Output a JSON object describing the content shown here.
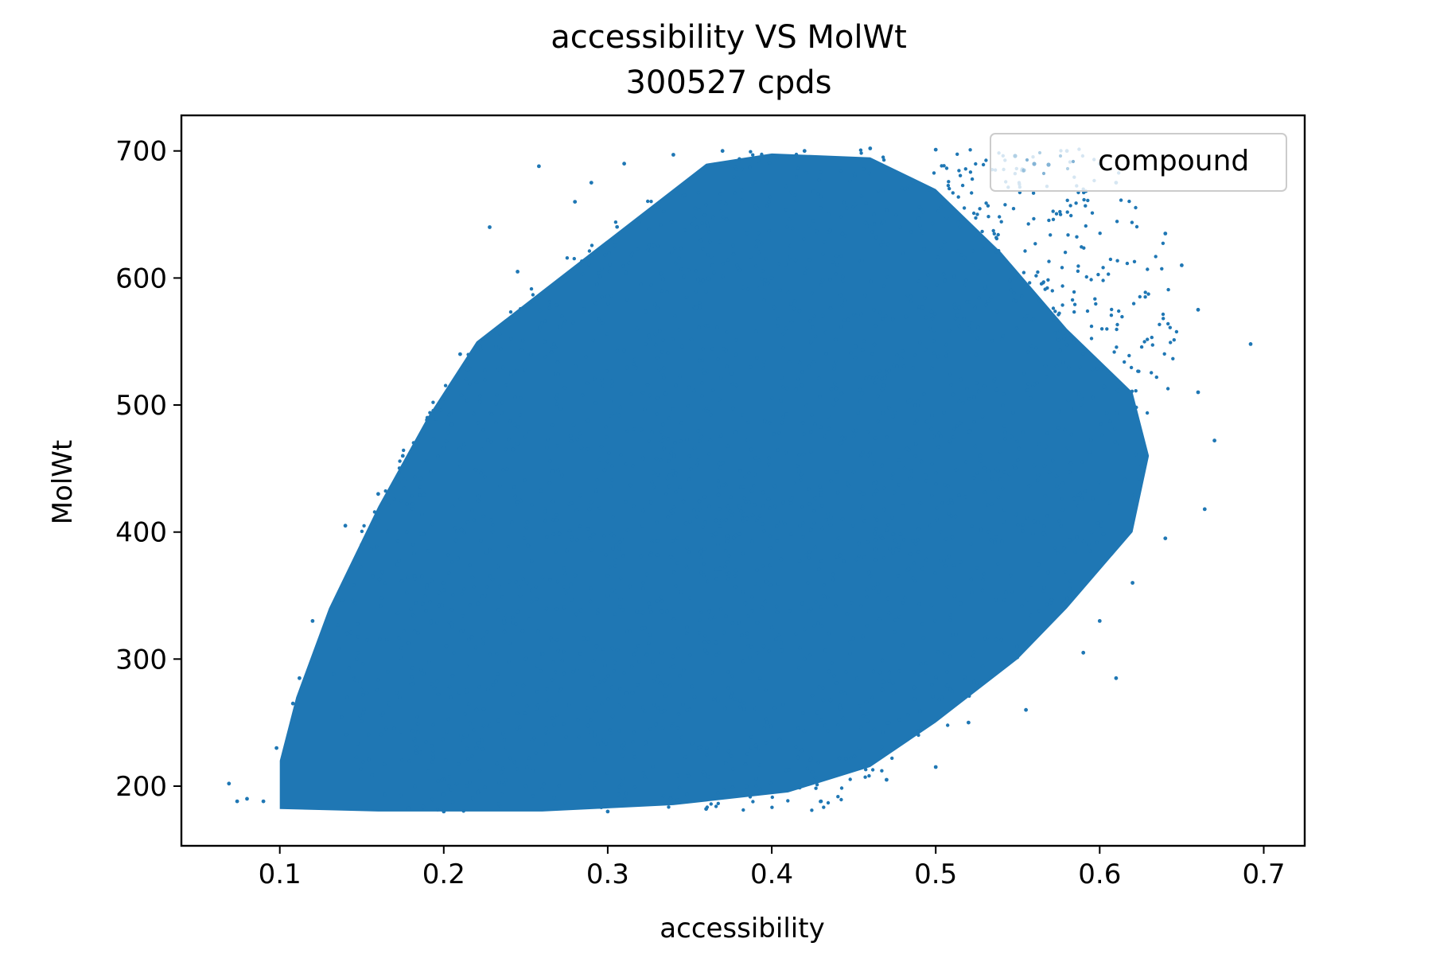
{
  "chart_data": {
    "type": "scatter",
    "title": "accessibility VS MolWt",
    "subtitle": "300527 cpds",
    "xlabel": "accessibility",
    "ylabel": "MolWt",
    "xlim": [
      0.04,
      0.725
    ],
    "ylim": [
      153,
      728
    ],
    "xticks": [
      0.1,
      0.2,
      0.3,
      0.4,
      0.5,
      0.6,
      0.7
    ],
    "xtick_labels": [
      "0.1",
      "0.2",
      "0.3",
      "0.4",
      "0.5",
      "0.6",
      "0.7"
    ],
    "yticks": [
      200,
      300,
      400,
      500,
      600,
      700
    ],
    "ytick_labels": [
      "200",
      "300",
      "400",
      "500",
      "600",
      "700"
    ],
    "grid": false,
    "legend": {
      "position": "top-right",
      "entries": [
        "compound"
      ]
    },
    "series": [
      {
        "name": "compound",
        "color": "#1f77b4",
        "point_count": 300527,
        "dense_core_outline": [
          [
            0.1,
            182
          ],
          [
            0.16,
            180
          ],
          [
            0.26,
            180
          ],
          [
            0.34,
            185
          ],
          [
            0.41,
            195
          ],
          [
            0.46,
            215
          ],
          [
            0.5,
            250
          ],
          [
            0.55,
            300
          ],
          [
            0.58,
            340
          ],
          [
            0.62,
            400
          ],
          [
            0.63,
            460
          ],
          [
            0.62,
            510
          ],
          [
            0.58,
            560
          ],
          [
            0.54,
            620
          ],
          [
            0.5,
            670
          ],
          [
            0.46,
            695
          ],
          [
            0.4,
            698
          ],
          [
            0.36,
            690
          ],
          [
            0.33,
            660
          ],
          [
            0.29,
            620
          ],
          [
            0.26,
            590
          ],
          [
            0.22,
            550
          ],
          [
            0.19,
            490
          ],
          [
            0.16,
            420
          ],
          [
            0.13,
            340
          ],
          [
            0.11,
            270
          ],
          [
            0.1,
            220
          ]
        ],
        "sample_points": [
          [
            0.069,
            202
          ],
          [
            0.074,
            188
          ],
          [
            0.08,
            190
          ],
          [
            0.09,
            188
          ],
          [
            0.098,
            230
          ],
          [
            0.108,
            265
          ],
          [
            0.112,
            285
          ],
          [
            0.12,
            330
          ],
          [
            0.14,
            405
          ],
          [
            0.15,
            390
          ],
          [
            0.16,
            430
          ],
          [
            0.175,
            460
          ],
          [
            0.19,
            490
          ],
          [
            0.2,
            505
          ],
          [
            0.21,
            540
          ],
          [
            0.22,
            545
          ],
          [
            0.228,
            640
          ],
          [
            0.245,
            605
          ],
          [
            0.258,
            688
          ],
          [
            0.28,
            660
          ],
          [
            0.29,
            675
          ],
          [
            0.31,
            690
          ],
          [
            0.34,
            697
          ],
          [
            0.37,
            700
          ],
          [
            0.42,
            700
          ],
          [
            0.46,
            702
          ],
          [
            0.5,
            701
          ],
          [
            0.58,
            700
          ],
          [
            0.6,
            690
          ],
          [
            0.61,
            675
          ],
          [
            0.64,
            635
          ],
          [
            0.65,
            610
          ],
          [
            0.66,
            575
          ],
          [
            0.692,
            548
          ],
          [
            0.66,
            510
          ],
          [
            0.67,
            472
          ],
          [
            0.664,
            418
          ],
          [
            0.64,
            395
          ],
          [
            0.62,
            360
          ],
          [
            0.6,
            330
          ],
          [
            0.59,
            305
          ],
          [
            0.61,
            285
          ],
          [
            0.555,
            260
          ],
          [
            0.52,
            250
          ],
          [
            0.5,
            215
          ],
          [
            0.47,
            205
          ],
          [
            0.43,
            188
          ],
          [
            0.36,
            182
          ],
          [
            0.3,
            180
          ],
          [
            0.2,
            180
          ],
          [
            0.42,
            300
          ],
          [
            0.38,
            420
          ],
          [
            0.3,
            350
          ],
          [
            0.45,
            480
          ],
          [
            0.25,
            300
          ],
          [
            0.35,
            260
          ],
          [
            0.48,
            420
          ],
          [
            0.52,
            560
          ],
          [
            0.4,
            600
          ],
          [
            0.22,
            260
          ]
        ]
      }
    ]
  }
}
